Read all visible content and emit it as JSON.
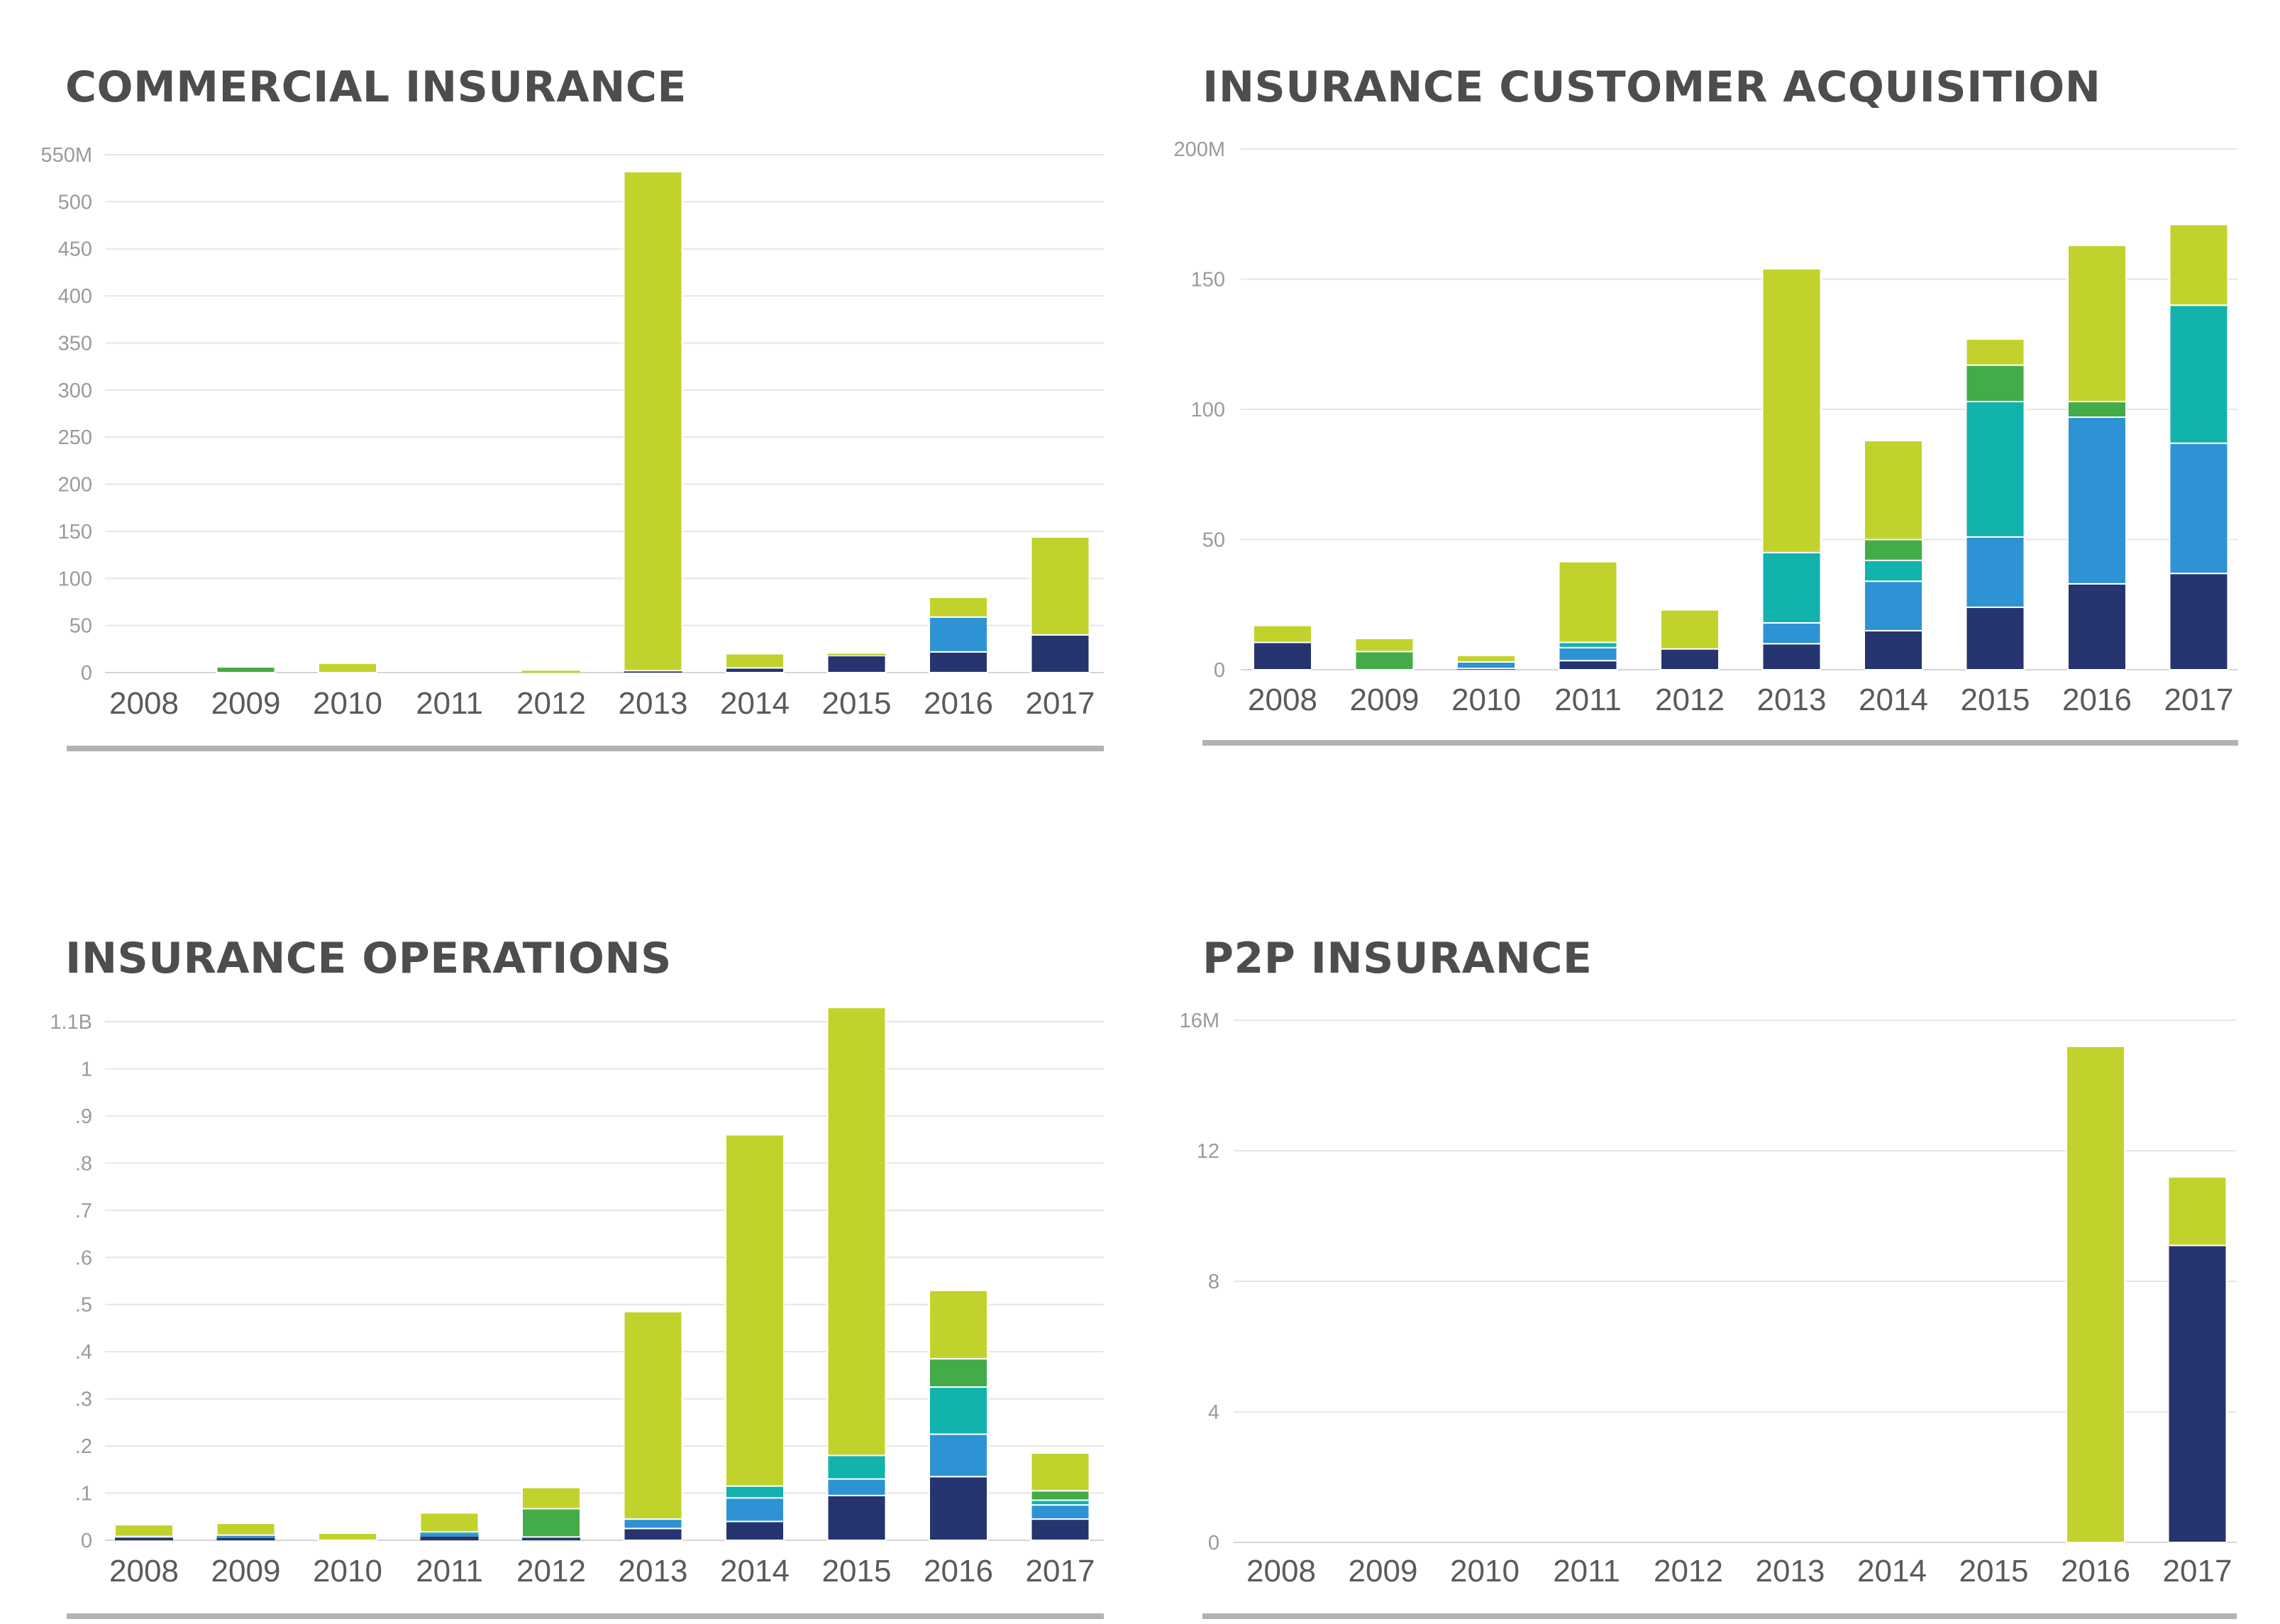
{
  "colors": {
    "navy": "#26346f",
    "blue": "#2d93d4",
    "teal": "#12b2ad",
    "green": "#43ac48",
    "lime": "#c2d22c"
  },
  "chart_data": [
    {
      "type": "bar",
      "title": "COMMERCIAL INSURANCE",
      "categories": [
        "2008",
        "2009",
        "2010",
        "2011",
        "2012",
        "2013",
        "2014",
        "2015",
        "2016",
        "2017"
      ],
      "ylim": [
        0,
        550
      ],
      "yticks": [
        {
          "value": 550,
          "label": "550M"
        },
        {
          "value": 500,
          "label": "500"
        },
        {
          "value": 450,
          "label": "450"
        },
        {
          "value": 400,
          "label": "400"
        },
        {
          "value": 350,
          "label": "350"
        },
        {
          "value": 300,
          "label": "300"
        },
        {
          "value": 250,
          "label": "250"
        },
        {
          "value": 200,
          "label": "200"
        },
        {
          "value": 150,
          "label": "150"
        },
        {
          "value": 100,
          "label": "100"
        },
        {
          "value": 50,
          "label": "50"
        },
        {
          "value": 0,
          "label": "0"
        }
      ],
      "grid": true,
      "series": [
        {
          "color": "navy",
          "values": [
            0,
            0,
            0,
            0,
            0,
            2,
            5,
            18,
            22,
            40
          ]
        },
        {
          "color": "blue",
          "values": [
            0,
            0,
            0,
            0,
            0,
            0,
            0,
            0,
            37,
            0
          ]
        },
        {
          "color": "teal",
          "values": [
            0,
            0,
            0,
            0,
            0,
            0,
            0,
            0,
            0,
            0
          ]
        },
        {
          "color": "green",
          "values": [
            0,
            6,
            0,
            0,
            0,
            0,
            0,
            0,
            0,
            0
          ]
        },
        {
          "color": "lime",
          "values": [
            0,
            0,
            10,
            0,
            2,
            530,
            15,
            2,
            21,
            104
          ]
        }
      ]
    },
    {
      "type": "bar",
      "title": "INSURANCE CUSTOMER ACQUISITION",
      "categories": [
        "2008",
        "2009",
        "2010",
        "2011",
        "2012",
        "2013",
        "2014",
        "2015",
        "2016",
        "2017"
      ],
      "ylim": [
        0,
        200
      ],
      "yticks": [
        {
          "value": 200,
          "label": "200M"
        },
        {
          "value": 150,
          "label": "150"
        },
        {
          "value": 100,
          "label": "100"
        },
        {
          "value": 50,
          "label": "50"
        },
        {
          "value": 0,
          "label": "0"
        }
      ],
      "grid": true,
      "series": [
        {
          "color": "navy",
          "values": [
            10.5,
            0,
            0.5,
            3.5,
            8,
            10,
            15,
            24,
            33,
            37
          ]
        },
        {
          "color": "blue",
          "values": [
            0,
            0,
            2.5,
            5,
            0,
            8,
            19,
            27,
            64,
            50
          ]
        },
        {
          "color": "teal",
          "values": [
            0,
            0,
            0,
            2,
            0,
            27,
            8,
            52,
            0,
            53
          ]
        },
        {
          "color": "green",
          "values": [
            0,
            7,
            0,
            0,
            0,
            0,
            8,
            14,
            6,
            0
          ]
        },
        {
          "color": "lime",
          "values": [
            6.5,
            5,
            2.5,
            31,
            15,
            109,
            38,
            10,
            60,
            31
          ]
        }
      ]
    },
    {
      "type": "bar",
      "title": "INSURANCE OPERATIONS",
      "categories": [
        "2008",
        "2009",
        "2010",
        "2011",
        "2012",
        "2013",
        "2014",
        "2015",
        "2016",
        "2017"
      ],
      "ylim": [
        0,
        1.1
      ],
      "yticks": [
        {
          "value": 1.1,
          "label": "1.1B"
        },
        {
          "value": 1.0,
          "label": "1"
        },
        {
          "value": 0.9,
          "label": ".9"
        },
        {
          "value": 0.8,
          "label": ".8"
        },
        {
          "value": 0.7,
          "label": ".7"
        },
        {
          "value": 0.6,
          "label": ".6"
        },
        {
          "value": 0.5,
          "label": ".5"
        },
        {
          "value": 0.4,
          "label": ".4"
        },
        {
          "value": 0.3,
          "label": ".3"
        },
        {
          "value": 0.2,
          "label": ".2"
        },
        {
          "value": 0.1,
          "label": ".1"
        },
        {
          "value": 0,
          "label": "0"
        }
      ],
      "grid": true,
      "series": [
        {
          "color": "navy",
          "values": [
            0.005,
            0.005,
            0,
            0.008,
            0.007,
            0.025,
            0.04,
            0.095,
            0.135,
            0.045
          ]
        },
        {
          "color": "blue",
          "values": [
            0.003,
            0.006,
            0,
            0.006,
            0,
            0.02,
            0.05,
            0.035,
            0.09,
            0.03
          ]
        },
        {
          "color": "teal",
          "values": [
            0,
            0,
            0,
            0.004,
            0,
            0,
            0.025,
            0.05,
            0.1,
            0.01
          ]
        },
        {
          "color": "green",
          "values": [
            0,
            0,
            0,
            0,
            0.06,
            0,
            0,
            0,
            0.06,
            0.02
          ]
        },
        {
          "color": "lime",
          "values": [
            0.025,
            0.025,
            0.015,
            0.04,
            0.045,
            0.44,
            0.745,
            0.95,
            0.145,
            0.08
          ]
        }
      ]
    },
    {
      "type": "bar",
      "title": "P2P INSURANCE",
      "categories": [
        "2008",
        "2009",
        "2010",
        "2011",
        "2012",
        "2013",
        "2014",
        "2015",
        "2016",
        "2017"
      ],
      "ylim": [
        0,
        16
      ],
      "yticks": [
        {
          "value": 16,
          "label": "16M"
        },
        {
          "value": 12,
          "label": "12"
        },
        {
          "value": 8,
          "label": "8"
        },
        {
          "value": 4,
          "label": "4"
        },
        {
          "value": 0,
          "label": "0"
        }
      ],
      "grid": true,
      "series": [
        {
          "color": "navy",
          "values": [
            0,
            0,
            0,
            0,
            0,
            0,
            0,
            0,
            0,
            9.1
          ]
        },
        {
          "color": "blue",
          "values": [
            0,
            0,
            0,
            0,
            0,
            0,
            0,
            0,
            0,
            0
          ]
        },
        {
          "color": "teal",
          "values": [
            0,
            0,
            0,
            0,
            0,
            0,
            0,
            0,
            0,
            0
          ]
        },
        {
          "color": "green",
          "values": [
            0,
            0,
            0,
            0,
            0,
            0,
            0,
            0,
            0,
            0
          ]
        },
        {
          "color": "lime",
          "values": [
            0,
            0,
            0,
            0,
            0,
            0,
            0,
            0,
            15.2,
            2.1
          ]
        }
      ]
    }
  ]
}
